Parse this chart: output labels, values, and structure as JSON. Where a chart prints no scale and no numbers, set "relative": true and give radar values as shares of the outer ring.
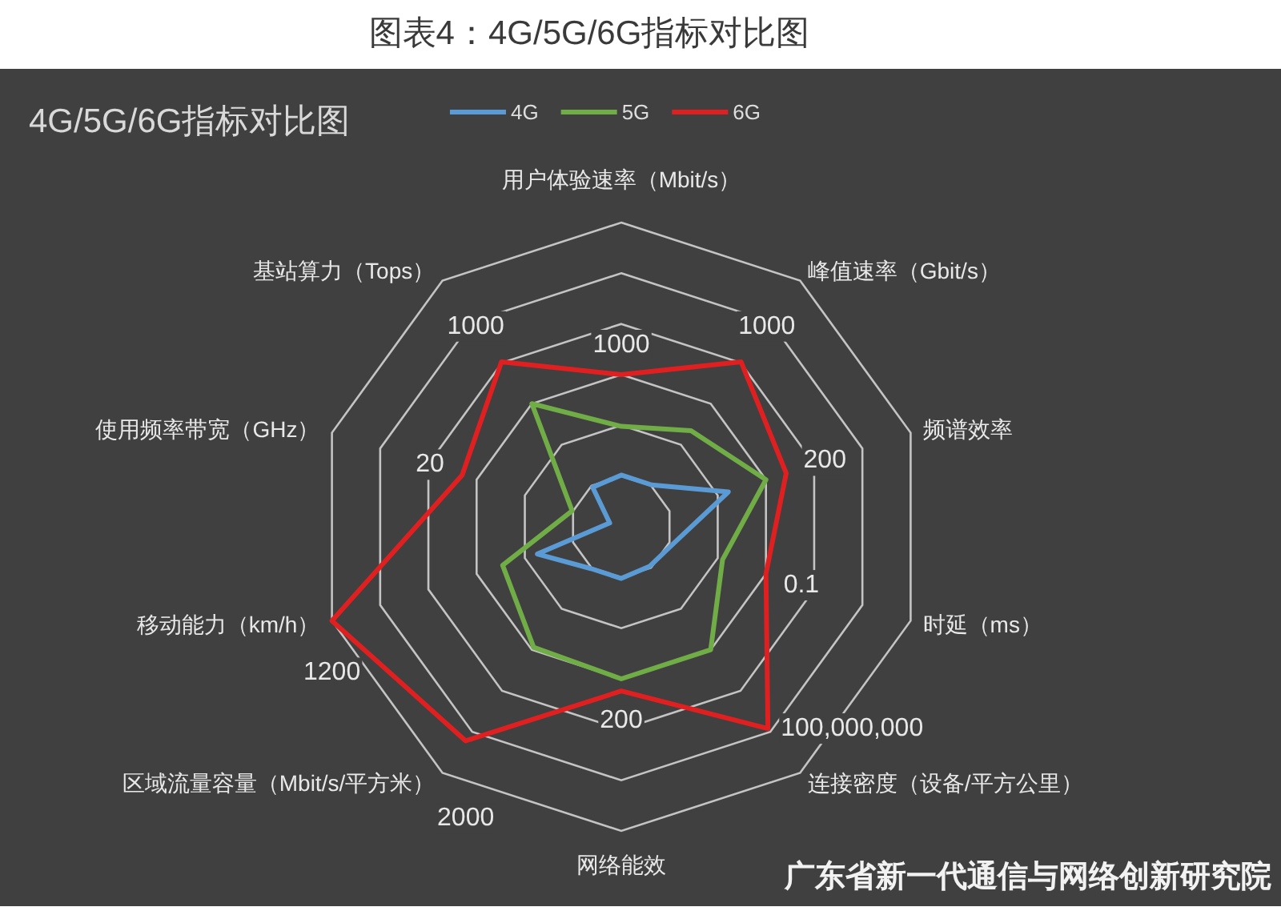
{
  "chart_data": {
    "type": "radar",
    "title": "图表4：4G/5G/6G指标对比图",
    "subtitle": "4G/5G/6G指标对比图",
    "categories": [
      "用户体验速率（Mbit/s）",
      "峰值速率（Gbit/s）",
      "频谱效率",
      "时延（ms）",
      "连接密度（设备/平方公里）",
      "网络能效",
      "区域流量容量（Mbit/s/平方米）",
      "移动能力（km/h）",
      "使用频率带宽（GHz）",
      "基站算力（Tops）"
    ],
    "relative": true,
    "grid": true,
    "legend": "top",
    "series": [
      {
        "name": "4G",
        "color": "#5b9bd5",
        "values": [
          0.17,
          0.17,
          0.37,
          0.18,
          0.16,
          0.17,
          0.17,
          0.29,
          0.04,
          0.16
        ]
      },
      {
        "name": "5G",
        "color": "#70ad47",
        "values": [
          0.33,
          0.39,
          0.5,
          0.35,
          0.5,
          0.5,
          0.49,
          0.41,
          0.17,
          0.5
        ]
      },
      {
        "name": "6G",
        "color": "#e02020",
        "values": [
          0.5,
          0.67,
          0.57,
          0.5,
          0.82,
          0.54,
          0.87,
          1.0,
          0.55,
          0.67
        ]
      }
    ],
    "annotations": [
      {
        "text": "1000",
        "x": "用户体验速率（Mbit/s）"
      },
      {
        "text": "1000",
        "x": "峰值速率（Gbit/s）"
      },
      {
        "text": "200",
        "x": "频谱效率"
      },
      {
        "text": "0.1",
        "x": "时延（ms）"
      },
      {
        "text": "100,000,000",
        "x": "连接密度（设备/平方公里）"
      },
      {
        "text": "200",
        "x": "网络能效"
      },
      {
        "text": "2000",
        "x": "区域流量容量（Mbit/s/平方米）"
      },
      {
        "text": "1200",
        "x": "移动能力（km/h）"
      },
      {
        "text": "20",
        "x": "使用频率带宽（GHz）"
      },
      {
        "text": "1000",
        "x": "基站算力（Tops）"
      },
      "广东省新一代通信与网络创新研究院"
    ]
  }
}
